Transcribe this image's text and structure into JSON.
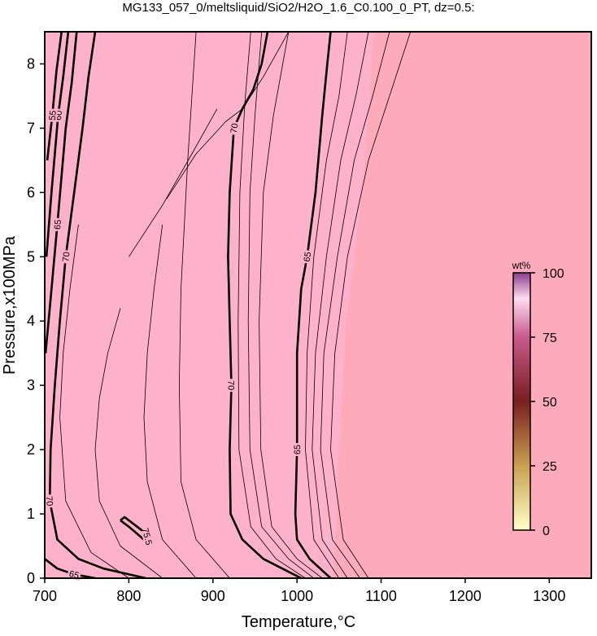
{
  "chart_data": {
    "type": "contour",
    "title": "MG133_057_0/meltsliquid/SiO2/H2O_1.6_C0.100_0_PT, dz=0.5:",
    "x_label": "Temperature,°C",
    "y_label": "Pressure,x100MPa",
    "xlim": [
      700,
      1350
    ],
    "ylim": [
      0,
      8.5
    ],
    "xticks": [
      700,
      800,
      900,
      1000,
      1100,
      1200,
      1300
    ],
    "yticks": [
      0,
      1,
      2,
      3,
      4,
      5,
      6,
      7,
      8
    ],
    "grid": true,
    "contours": [
      {
        "level": 70,
        "x": [
          760,
          752,
          745,
          735,
          725,
          718,
          712,
          707,
          706,
          715,
          740,
          770,
          820
        ],
        "y": [
          8.5,
          7.8,
          7,
          6,
          5,
          4,
          3,
          2,
          1.2,
          0.6,
          0.3,
          0.15,
          0
        ]
      },
      {
        "level": 70,
        "x": [
          965,
          958,
          948,
          935,
          925,
          920,
          918,
          920,
          922,
          920,
          921,
          935,
          960,
          1005
        ],
        "y": [
          8.5,
          8,
          7.6,
          7.3,
          7,
          6,
          5,
          4,
          3,
          2,
          1,
          0.6,
          0.3,
          0
        ]
      },
      {
        "level": 65,
        "x": [
          1040,
          1036,
          1030,
          1022,
          1012,
          1005,
          1000,
          1000,
          998,
          1000,
          1015,
          1040
        ],
        "y": [
          8.5,
          8,
          7.2,
          6,
          5,
          4.5,
          3.5,
          2,
          1,
          0.6,
          0.3,
          0
        ]
      },
      {
        "level": 65,
        "x": [
          738,
          732,
          725,
          715,
          706,
          701
        ],
        "y": [
          8.5,
          7.7,
          7,
          5.5,
          4.2,
          3.5
        ]
      },
      {
        "level": 60,
        "x": [
          728,
          722,
          716,
          708,
          702
        ],
        "y": [
          8.5,
          7.8,
          7.2,
          6,
          5
        ]
      },
      {
        "level": 55,
        "x": [
          720,
          714,
          709,
          703
        ],
        "y": [
          8.5,
          7.9,
          7.2,
          6.5
        ]
      },
      {
        "level": 65,
        "x": [
          700,
          715,
          735,
          760
        ],
        "y": [
          0.3,
          0.15,
          0.06,
          0
        ]
      },
      {
        "level": 75.5,
        "x": [
          790,
          795,
          815,
          822,
          818,
          800,
          790
        ],
        "y": [
          0.9,
          0.95,
          0.75,
          0.65,
          0.6,
          0.8,
          0.9
        ]
      },
      {
        "level": null,
        "x": [
          945,
          938,
          932,
          930,
          931,
          945,
          975,
          1010
        ],
        "y": [
          8.5,
          7.4,
          6,
          4,
          2,
          0.8,
          0.3,
          0
        ]
      },
      {
        "level": null,
        "x": [
          958,
          950,
          944,
          942,
          944,
          958,
          990,
          1020
        ],
        "y": [
          8.5,
          7.2,
          6,
          4,
          2,
          0.8,
          0.3,
          0
        ]
      },
      {
        "level": null,
        "x": [
          990,
          972,
          960,
          955,
          957,
          970,
          1000,
          1030
        ],
        "y": [
          8.5,
          7.2,
          6,
          4,
          2,
          0.8,
          0.3,
          0
        ]
      },
      {
        "level": null,
        "x": [
          1060,
          1050,
          1035,
          1020,
          1012,
          1010,
          1020,
          1050
        ],
        "y": [
          8.5,
          7.5,
          6.5,
          5,
          3.5,
          2,
          0.6,
          0
        ]
      },
      {
        "level": null,
        "x": [
          1085,
          1070,
          1052,
          1035,
          1022,
          1018,
          1030,
          1060
        ],
        "y": [
          8.5,
          7.5,
          6.5,
          5,
          3.5,
          2,
          0.6,
          0
        ]
      },
      {
        "level": null,
        "x": [
          1110,
          1090,
          1068,
          1048,
          1032,
          1028,
          1042,
          1075
        ],
        "y": [
          8.5,
          7.5,
          6.5,
          5,
          3.5,
          2,
          0.6,
          0
        ]
      },
      {
        "level": null,
        "x": [
          1135,
          1110,
          1085,
          1060,
          1045,
          1040,
          1055,
          1085
        ],
        "y": [
          8.5,
          7.5,
          6.5,
          5,
          3.5,
          2,
          0.6,
          0
        ]
      },
      {
        "level": null,
        "x": [
          845,
          880,
          915,
          935,
          960,
          990
        ],
        "y": [
          5.9,
          6.6,
          7.1,
          7.3,
          7.8,
          8.5
        ]
      },
      {
        "level": null,
        "x": [
          800,
          840,
          875,
          905
        ],
        "y": [
          5,
          5.8,
          6.6,
          7.3
        ]
      },
      {
        "level": null,
        "x": [
          880,
          870,
          862,
          860,
          862,
          880,
          920
        ],
        "y": [
          8.5,
          6.5,
          4.5,
          3,
          1.5,
          0.6,
          0
        ]
      },
      {
        "level": null,
        "x": [
          840,
          830,
          822,
          818,
          822,
          840,
          880
        ],
        "y": [
          5.5,
          4.5,
          3.5,
          2.5,
          1.5,
          0.6,
          0
        ]
      },
      {
        "level": null,
        "x": [
          790,
          775,
          765,
          760,
          765,
          790,
          840
        ],
        "y": [
          4.2,
          3.5,
          2.8,
          2,
          1.2,
          0.5,
          0
        ]
      },
      {
        "level": null,
        "x": [
          740,
          730,
          722,
          718,
          725,
          755,
          800
        ],
        "y": [
          5.5,
          4.5,
          3.5,
          2.5,
          1.2,
          0.4,
          0
        ]
      }
    ],
    "colorbar": {
      "label": "wt%",
      "lim": [
        0,
        100
      ],
      "ticks": [
        0,
        25,
        50,
        75,
        100
      ]
    }
  }
}
